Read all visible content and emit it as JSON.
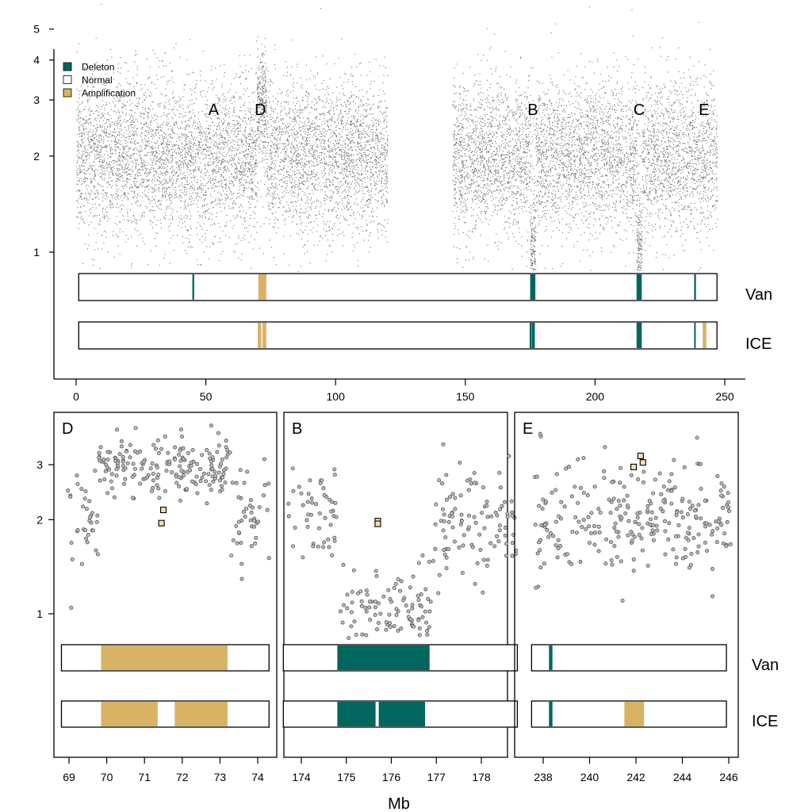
{
  "chart_data": [
    {
      "type": "scatter",
      "panel": "genome",
      "xlim": [
        0,
        250
      ],
      "x_ticks": [
        "0",
        "50",
        "100",
        "150",
        "200",
        "250"
      ],
      "y_scale": "log",
      "y_ticks": [
        "1",
        "2",
        "3",
        "4",
        "5"
      ],
      "annotations": [
        {
          "label": "A",
          "x": 53
        },
        {
          "label": "D",
          "x": 71
        },
        {
          "label": "B",
          "x": 176
        },
        {
          "label": "C",
          "x": 217
        },
        {
          "label": "E",
          "x": 242
        }
      ],
      "legend": {
        "position": "top-left",
        "items": [
          {
            "label": "Deleton",
            "color": "#00665e"
          },
          {
            "label": "Normal",
            "color": "#ffffff"
          },
          {
            "label": "Amplification",
            "color": "#d8b365"
          }
        ]
      },
      "tracks": [
        {
          "name": "Van",
          "range": [
            1,
            247
          ],
          "segments": [
            {
              "type": "deletion",
              "start": 44.8,
              "end": 45.5
            },
            {
              "type": "amplification",
              "start": 70.2,
              "end": 73.3
            },
            {
              "type": "deletion",
              "start": 175.0,
              "end": 177.0
            },
            {
              "type": "deletion",
              "start": 216.0,
              "end": 218.0
            },
            {
              "type": "deletion",
              "start": 238.2,
              "end": 238.9
            }
          ]
        },
        {
          "name": "ICE",
          "range": [
            1,
            247
          ],
          "segments": [
            {
              "type": "amplification",
              "start": 70.0,
              "end": 71.4
            },
            {
              "type": "amplification",
              "start": 71.8,
              "end": 73.3
            },
            {
              "type": "deletion",
              "start": 174.8,
              "end": 175.6
            },
            {
              "type": "deletion",
              "start": 175.7,
              "end": 176.8
            },
            {
              "type": "deletion",
              "start": 216.0,
              "end": 218.0
            },
            {
              "type": "deletion",
              "start": 238.2,
              "end": 238.7
            },
            {
              "type": "amplification",
              "start": 241.5,
              "end": 242.9
            }
          ]
        }
      ],
      "density_profile": [
        {
          "start": 0,
          "end": 120,
          "median": 2.0
        },
        {
          "start": 69.6,
          "end": 73.3,
          "median": 3.0
        },
        {
          "start": 145,
          "end": 247,
          "median": 2.0
        },
        {
          "start": 175.0,
          "end": 177.0,
          "median": 1.0
        },
        {
          "start": 216.0,
          "end": 218.0,
          "median": 1.0
        }
      ]
    },
    {
      "type": "scatter",
      "panel": "D",
      "title": "D",
      "xlim": [
        68.8,
        74.4
      ],
      "x_ticks": [
        "69",
        "70",
        "71",
        "72",
        "73",
        "74"
      ],
      "y_scale": "log",
      "y_ticks": [
        "1",
        "2",
        "3"
      ],
      "highlight_points": [
        {
          "x": 71.5,
          "y": 2.15
        },
        {
          "x": 71.45,
          "y": 1.95
        }
      ],
      "tracks": [
        {
          "name": "Van",
          "range": [
            68.8,
            74.3
          ],
          "segments": [
            {
              "type": "amplification",
              "start": 69.85,
              "end": 73.2
            }
          ]
        },
        {
          "name": "ICE",
          "range": [
            68.8,
            74.3
          ],
          "segments": [
            {
              "type": "amplification",
              "start": 69.85,
              "end": 71.35
            },
            {
              "type": "amplification",
              "start": 71.8,
              "end": 73.2
            }
          ]
        }
      ]
    },
    {
      "type": "scatter",
      "panel": "B",
      "title": "B",
      "xlim": [
        173.6,
        178.9
      ],
      "x_ticks": [
        "174",
        "175",
        "176",
        "177",
        "178"
      ],
      "y_scale": "log",
      "highlight_points": [
        {
          "x": 175.7,
          "y": 1.98
        },
        {
          "x": 175.7,
          "y": 1.94
        }
      ],
      "tracks": [
        {
          "name": "Van",
          "range": [
            173.6,
            178.8
          ],
          "segments": [
            {
              "type": "deletion",
              "start": 174.8,
              "end": 176.85
            }
          ]
        },
        {
          "name": "ICE",
          "range": [
            173.6,
            178.8
          ],
          "segments": [
            {
              "type": "deletion",
              "start": 174.8,
              "end": 175.65
            },
            {
              "type": "deletion",
              "start": 175.72,
              "end": 176.75
            }
          ]
        }
      ]
    },
    {
      "type": "scatter",
      "panel": "E",
      "title": "E",
      "xlim": [
        237.5,
        246.2
      ],
      "x_ticks": [
        "238",
        "240",
        "242",
        "244",
        "246"
      ],
      "y_scale": "log",
      "highlight_points": [
        {
          "x": 242.2,
          "y": 3.2
        },
        {
          "x": 242.3,
          "y": 3.05
        },
        {
          "x": 241.9,
          "y": 2.95
        }
      ],
      "tracks": [
        {
          "name": "Van",
          "range": [
            237.5,
            245.9
          ],
          "segments": [
            {
              "type": "deletion",
              "start": 238.25,
              "end": 238.4
            }
          ]
        },
        {
          "name": "ICE",
          "range": [
            237.5,
            245.9
          ],
          "segments": [
            {
              "type": "deletion",
              "start": 238.25,
              "end": 238.4
            },
            {
              "type": "amplification",
              "start": 241.5,
              "end": 242.35
            }
          ]
        }
      ]
    }
  ],
  "labels": {
    "xlabel": "Mb",
    "track_van": "Van",
    "track_ice": "ICE"
  },
  "colors": {
    "deletion": "#00665e",
    "amplification": "#d8b365",
    "point": "#6e6e6e"
  }
}
